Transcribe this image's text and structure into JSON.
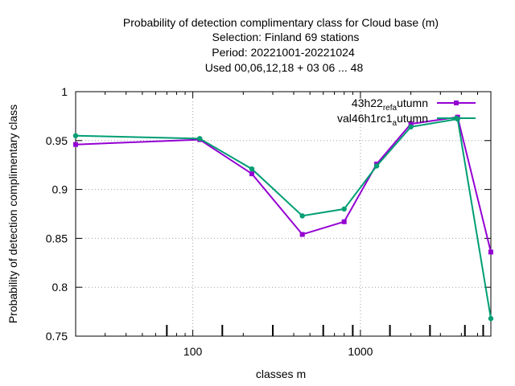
{
  "chart_data": {
    "type": "line",
    "title_lines": [
      "Probability of detection complimentary class  for Cloud base (m)",
      "Selection: Finland     69 stations",
      "Period: 20221001-20221024",
      "Used  00,06,12,18  + 03 06 ... 48"
    ],
    "xlabel": "classes m",
    "ylabel": "Probability of detection complimentary class",
    "x_scale": "log",
    "xlim": [
      20,
      6000
    ],
    "ylim": [
      0.75,
      1.0
    ],
    "y_ticks": [
      0.75,
      0.8,
      0.85,
      0.9,
      0.95,
      1
    ],
    "y_tick_labels": [
      "0.75",
      "0.8",
      "0.85",
      "0.9",
      "0.95",
      "1"
    ],
    "x_major_ticks": [
      100,
      1000
    ],
    "x_major_tick_labels": [
      "100",
      "1000"
    ],
    "x_minor_ticks": [
      30,
      40,
      50,
      60,
      70,
      80,
      90,
      200,
      300,
      400,
      500,
      600,
      700,
      800,
      900,
      2000,
      3000,
      4000,
      5000
    ],
    "bottom_rug": [
      70,
      150,
      300,
      600,
      900,
      1500,
      2600,
      4200,
      5400
    ],
    "grid": true,
    "legend_position": "top-right",
    "series": [
      {
        "name": "43h22_ref_autumn",
        "legend": {
          "main1": "43h22",
          "sub1": "ref",
          "main2": "",
          "sub2": "a",
          "main3": "utumn"
        },
        "color": "#9400d3",
        "marker": "filled-square",
        "points": [
          {
            "x": 20,
            "y": 0.946
          },
          {
            "x": 110,
            "y": 0.951
          },
          {
            "x": 225,
            "y": 0.916
          },
          {
            "x": 450,
            "y": 0.854
          },
          {
            "x": 800,
            "y": 0.867
          },
          {
            "x": 1250,
            "y": 0.926
          },
          {
            "x": 2000,
            "y": 0.967
          },
          {
            "x": 3800,
            "y": 0.974
          },
          {
            "x": 6000,
            "y": 0.836
          }
        ]
      },
      {
        "name": "val46h1rc1_autumn",
        "legend": {
          "main1": "val46h1rc1",
          "sub1": "",
          "main2": "",
          "sub2": "a",
          "main3": "utumn"
        },
        "color": "#009e73",
        "marker": "filled-circle",
        "points": [
          {
            "x": 20,
            "y": 0.955
          },
          {
            "x": 110,
            "y": 0.952
          },
          {
            "x": 225,
            "y": 0.921
          },
          {
            "x": 450,
            "y": 0.873
          },
          {
            "x": 800,
            "y": 0.88
          },
          {
            "x": 1250,
            "y": 0.924
          },
          {
            "x": 2000,
            "y": 0.964
          },
          {
            "x": 3800,
            "y": 0.972
          },
          {
            "x": 6000,
            "y": 0.768
          }
        ]
      }
    ]
  }
}
